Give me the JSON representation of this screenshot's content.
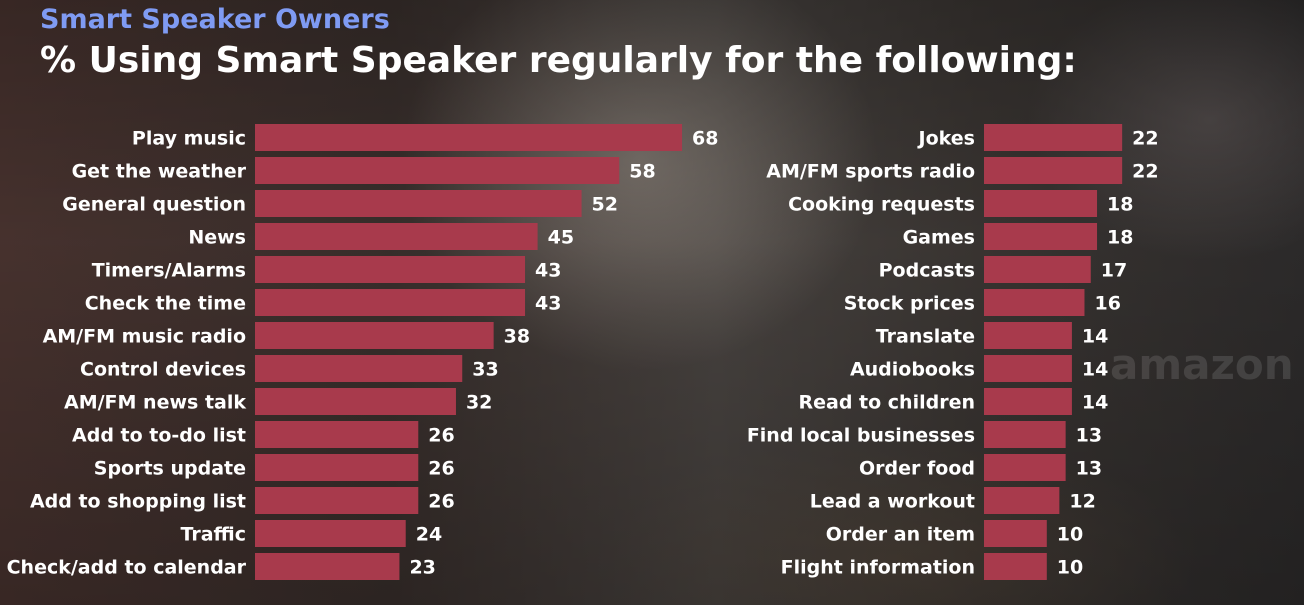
{
  "chart_data": {
    "type": "bar",
    "orientation": "horizontal",
    "supertitle": "Smart Speaker Owners",
    "title": "% Using Smart Speaker regularly for the following:",
    "bar_color": "#a83a4c",
    "panels": [
      {
        "categories": [
          "Play music",
          "Get the weather",
          "General question",
          "News",
          "Timers/Alarms",
          "Check the time",
          "AM/FM music radio",
          "Control devices",
          "AM/FM news talk",
          "Add to to-do list",
          "Sports update",
          "Add to shopping list",
          "Traffic",
          "Check/add to calendar"
        ],
        "values": [
          68,
          58,
          52,
          45,
          43,
          43,
          38,
          33,
          32,
          26,
          26,
          26,
          24,
          23
        ]
      },
      {
        "categories": [
          "Jokes",
          "AM/FM sports radio",
          "Cooking requests",
          "Games",
          "Podcasts",
          "Stock prices",
          "Translate",
          "Audiobooks",
          "Read to children",
          "Find local businesses",
          "Order food",
          "Lead a workout",
          "Order an item",
          "Flight information"
        ],
        "values": [
          22,
          22,
          18,
          18,
          17,
          16,
          14,
          14,
          14,
          13,
          13,
          12,
          10,
          10
        ]
      }
    ]
  }
}
